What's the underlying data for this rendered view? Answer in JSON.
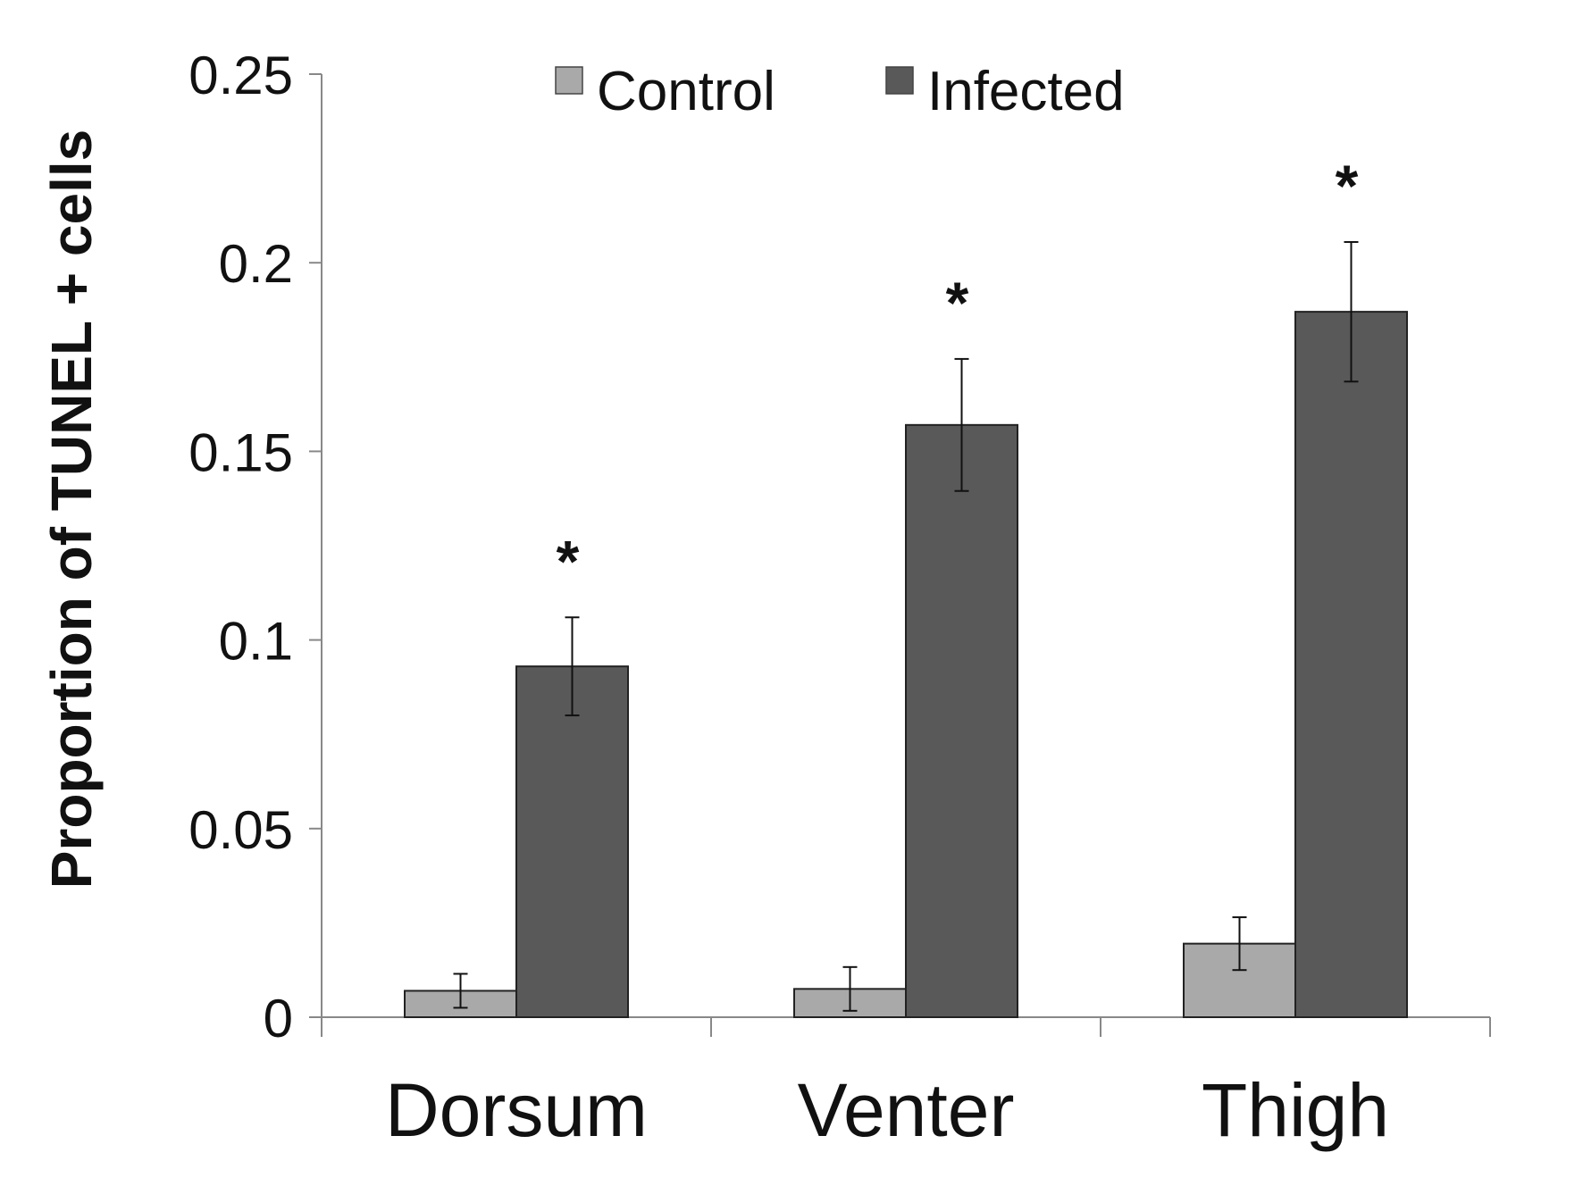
{
  "chart_data": {
    "type": "bar",
    "title": "",
    "xlabel": "",
    "ylabel": "Proportion of TUNEL + cells",
    "ylim": [
      0,
      0.25
    ],
    "yticks": [
      0,
      0.05,
      0.1,
      0.15,
      0.2,
      0.25
    ],
    "ytick_labels": [
      "0",
      "0.05",
      "0.1",
      "0.15",
      "0.2",
      "0.25"
    ],
    "categories": [
      "Dorsum",
      "Venter",
      "Thigh"
    ],
    "legend_position": "top-center",
    "grid": false,
    "series": [
      {
        "name": "Control",
        "color": "#a9a9a9",
        "values": [
          0.007,
          0.0075,
          0.0195
        ],
        "errors": [
          0.0045,
          0.0058,
          0.007
        ]
      },
      {
        "name": "Infected",
        "color": "#595959",
        "values": [
          0.093,
          0.157,
          0.187
        ],
        "errors": [
          0.013,
          0.0175,
          0.0185
        ]
      }
    ],
    "annotations": [
      {
        "category": "Dorsum",
        "series": "Infected",
        "text": "*"
      },
      {
        "category": "Venter",
        "series": "Infected",
        "text": "*"
      },
      {
        "category": "Thigh",
        "series": "Infected",
        "text": "*"
      }
    ]
  }
}
